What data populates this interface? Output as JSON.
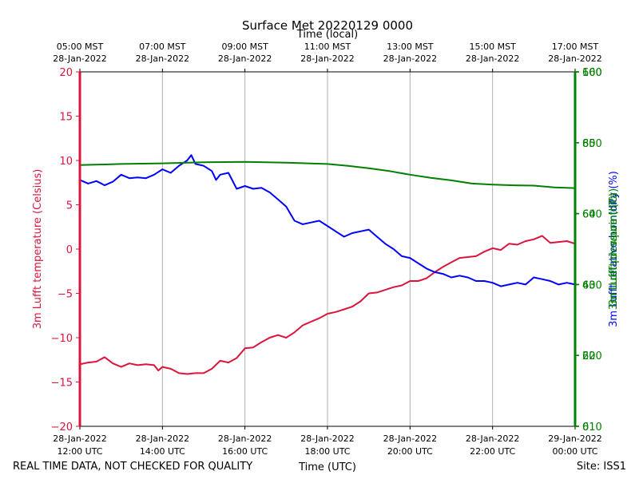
{
  "chart_data": {
    "type": "line",
    "title": "Surface Met 20220129 0000",
    "xlabel_top": "Time (local)",
    "xlabel_bottom": "Time (UTC)",
    "footer_left": "REAL TIME DATA, NOT CHECKED FOR QUALITY",
    "footer_right": "Site: ISS1",
    "x_range_hours_utc": [
      12.0,
      24.0
    ],
    "top_ticks": [
      {
        "h": 12,
        "l1": "05:00 MST",
        "l2": "28-Jan-2022"
      },
      {
        "h": 14,
        "l1": "07:00 MST",
        "l2": "28-Jan-2022"
      },
      {
        "h": 16,
        "l1": "09:00 MST",
        "l2": "28-Jan-2022"
      },
      {
        "h": 18,
        "l1": "11:00 MST",
        "l2": "28-Jan-2022"
      },
      {
        "h": 20,
        "l1": "13:00 MST",
        "l2": "28-Jan-2022"
      },
      {
        "h": 22,
        "l1": "15:00 MST",
        "l2": "28-Jan-2022"
      },
      {
        "h": 24,
        "l1": "17:00 MST",
        "l2": "28-Jan-2022"
      }
    ],
    "bottom_ticks": [
      {
        "h": 12,
        "l1": "28-Jan-2022",
        "l2": "12:00 UTC"
      },
      {
        "h": 14,
        "l1": "28-Jan-2022",
        "l2": "14:00 UTC"
      },
      {
        "h": 16,
        "l1": "28-Jan-2022",
        "l2": "16:00 UTC"
      },
      {
        "h": 18,
        "l1": "28-Jan-2022",
        "l2": "18:00 UTC"
      },
      {
        "h": 20,
        "l1": "28-Jan-2022",
        "l2": "20:00 UTC"
      },
      {
        "h": 22,
        "l1": "28-Jan-2022",
        "l2": "22:00 UTC"
      },
      {
        "h": 24,
        "l1": "29-Jan-2022",
        "l2": "00:00 UTC"
      }
    ],
    "left_axis": {
      "label": "3m Lufft temperature (Celsius)",
      "color": "#dc143c",
      "ylim": [
        -20,
        20
      ],
      "ticks": [
        -20,
        -15,
        -10,
        -5,
        0,
        5,
        10,
        15,
        20
      ]
    },
    "right_axis": {
      "labels_overlapped": [
        "3m Lufft relative humidity (%)",
        "3m Lufft pressure (hPa)",
        "3m Lufft dewpoint (C)"
      ],
      "label_colors": [
        "#0000ff",
        "#008000",
        "#008000"
      ],
      "color": "#008000",
      "ylim": [
        0,
        100
      ],
      "ticks_a": [
        {
          "pos": 0,
          "label": "0"
        },
        {
          "pos": 20,
          "label": "20"
        },
        {
          "pos": 40,
          "label": "40"
        },
        {
          "pos": 60,
          "label": "60"
        },
        {
          "pos": 80,
          "label": "80"
        },
        {
          "pos": 100,
          "label": "100"
        }
      ],
      "ticks_b": [
        {
          "pos": 0,
          "label": "610"
        },
        {
          "pos": 20,
          "label": "620"
        },
        {
          "pos": 40,
          "label": "630"
        },
        {
          "pos": 60,
          "label": "640"
        },
        {
          "pos": 80,
          "label": "650"
        },
        {
          "pos": 100,
          "label": "660"
        }
      ]
    },
    "series": [
      {
        "name": "3m Lufft temperature (Celsius)",
        "axis": "left",
        "color": "#dc143c",
        "x": [
          12.0,
          12.2,
          12.4,
          12.6,
          12.8,
          13.0,
          13.2,
          13.4,
          13.6,
          13.8,
          13.9,
          14.0,
          14.2,
          14.4,
          14.6,
          14.8,
          15.0,
          15.2,
          15.4,
          15.6,
          15.8,
          16.0,
          16.2,
          16.4,
          16.6,
          16.8,
          17.0,
          17.2,
          17.4,
          17.6,
          17.8,
          18.0,
          18.2,
          18.4,
          18.6,
          18.8,
          19.0,
          19.2,
          19.4,
          19.6,
          19.8,
          20.0,
          20.2,
          20.4,
          20.6,
          20.8,
          21.0,
          21.2,
          21.4,
          21.6,
          21.8,
          22.0,
          22.2,
          22.4,
          22.6,
          22.8,
          23.0,
          23.2,
          23.4,
          23.6,
          23.8,
          24.0
        ],
        "y": [
          -13.0,
          -12.8,
          -12.7,
          -12.2,
          -12.9,
          -13.3,
          -12.9,
          -13.1,
          -13.0,
          -13.1,
          -13.7,
          -13.3,
          -13.5,
          -14.0,
          -14.1,
          -14.0,
          -14.0,
          -13.5,
          -12.6,
          -12.8,
          -12.3,
          -11.2,
          -11.1,
          -10.5,
          -10.0,
          -9.7,
          -10.0,
          -9.4,
          -8.6,
          -8.2,
          -7.8,
          -7.3,
          -7.1,
          -6.8,
          -6.5,
          -5.9,
          -5.0,
          -4.9,
          -4.6,
          -4.3,
          -4.1,
          -3.6,
          -3.6,
          -3.3,
          -2.6,
          -2.0,
          -1.5,
          -1.0,
          -0.9,
          -0.8,
          -0.3,
          0.1,
          -0.1,
          0.6,
          0.5,
          0.9,
          1.1,
          1.5,
          0.7,
          0.8,
          0.9,
          0.6
        ]
      },
      {
        "name": "3m Lufft relative humidity (%)",
        "axis": "right",
        "color": "#0000ff",
        "x": [
          12.0,
          12.2,
          12.4,
          12.6,
          12.8,
          13.0,
          13.2,
          13.4,
          13.6,
          13.8,
          14.0,
          14.2,
          14.4,
          14.6,
          14.7,
          14.8,
          15.0,
          15.2,
          15.3,
          15.4,
          15.6,
          15.8,
          16.0,
          16.2,
          16.4,
          16.6,
          16.8,
          17.0,
          17.2,
          17.4,
          17.6,
          17.8,
          18.0,
          18.2,
          18.4,
          18.6,
          18.8,
          19.0,
          19.2,
          19.4,
          19.6,
          19.8,
          20.0,
          20.2,
          20.4,
          20.6,
          20.8,
          21.0,
          21.2,
          21.4,
          21.6,
          21.8,
          22.0,
          22.2,
          22.4,
          22.6,
          22.8,
          23.0,
          23.2,
          23.4,
          23.6,
          23.8,
          24.0
        ],
        "y": [
          69.5,
          68.5,
          69.2,
          68.0,
          69.0,
          71.0,
          70.0,
          70.2,
          70.0,
          71.0,
          72.5,
          71.5,
          73.5,
          75.0,
          76.5,
          74.0,
          73.5,
          72.0,
          69.5,
          71.0,
          71.5,
          67.0,
          67.8,
          67.0,
          67.3,
          66.0,
          64.0,
          62.0,
          58.0,
          57.0,
          57.5,
          58.0,
          56.5,
          55.0,
          53.5,
          54.5,
          55.0,
          55.5,
          53.5,
          51.5,
          50.0,
          48.0,
          47.5,
          46.0,
          44.5,
          43.5,
          43.0,
          42.0,
          42.5,
          42.0,
          41.0,
          41.0,
          40.5,
          39.5,
          40.0,
          40.5,
          40.0,
          42.0,
          41.5,
          41.0,
          40.0,
          40.5,
          40.0
        ]
      },
      {
        "name": "3m Lufft pressure (hPa)",
        "axis": "right",
        "color": "#008000",
        "x": [
          12.0,
          13.0,
          14.0,
          15.0,
          16.0,
          17.0,
          18.0,
          18.5,
          19.0,
          19.5,
          20.0,
          20.5,
          21.0,
          21.5,
          22.0,
          22.5,
          23.0,
          23.5,
          24.0
        ],
        "y": [
          73.7,
          74.0,
          74.2,
          74.5,
          74.6,
          74.4,
          74.0,
          73.5,
          72.8,
          72.0,
          71.0,
          70.1,
          69.4,
          68.5,
          68.2,
          68.0,
          67.9,
          67.4,
          67.2
        ]
      }
    ]
  }
}
